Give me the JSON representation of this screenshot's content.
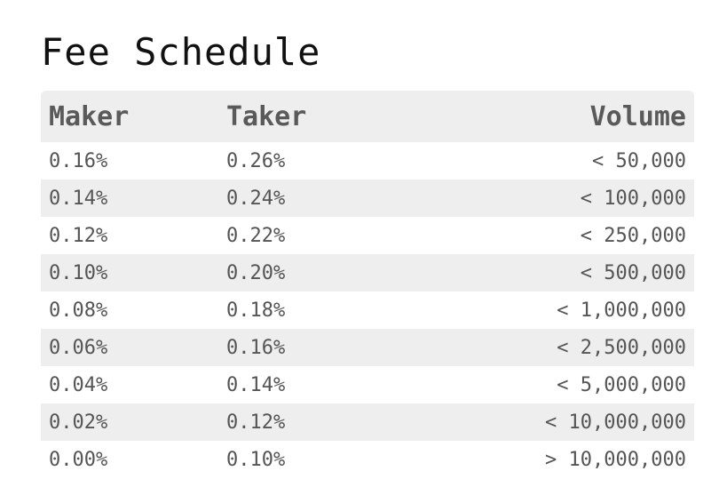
{
  "title": "Fee Schedule",
  "table": {
    "headers": {
      "maker": "Maker",
      "taker": "Taker",
      "volume": "Volume"
    },
    "rows": [
      {
        "maker": "0.16%",
        "taker": "0.26%",
        "volume": "< 50,000"
      },
      {
        "maker": "0.14%",
        "taker": "0.24%",
        "volume": "< 100,000"
      },
      {
        "maker": "0.12%",
        "taker": "0.22%",
        "volume": "< 250,000"
      },
      {
        "maker": "0.10%",
        "taker": "0.20%",
        "volume": "< 500,000"
      },
      {
        "maker": "0.08%",
        "taker": "0.18%",
        "volume": "< 1,000,000"
      },
      {
        "maker": "0.06%",
        "taker": "0.16%",
        "volume": "< 2,500,000"
      },
      {
        "maker": "0.04%",
        "taker": "0.14%",
        "volume": "< 5,000,000"
      },
      {
        "maker": "0.02%",
        "taker": "0.12%",
        "volume": "< 10,000,000"
      },
      {
        "maker": "0.00%",
        "taker": "0.10%",
        "volume": "> 10,000,000"
      }
    ]
  },
  "colors": {
    "stripe_background": "#eeeeee",
    "text": "#555555",
    "title_text": "#111111"
  }
}
